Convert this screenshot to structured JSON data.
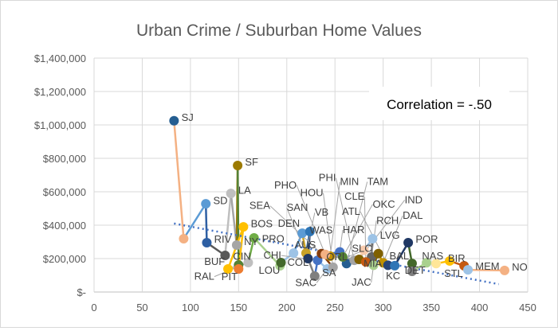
{
  "chart_data": {
    "type": "scatter",
    "title": "Urban Crime / Suburban Home Values",
    "annotation": "Correlation = -.50",
    "xlim": [
      0,
      450
    ],
    "ylim": [
      0,
      1400000
    ],
    "x_ticks": [
      "0",
      "50",
      "100",
      "150",
      "200",
      "250",
      "300",
      "350",
      "400",
      "450"
    ],
    "y_ticks": [
      "$-",
      "$200,000",
      "$400,000",
      "$600,000",
      "$800,000",
      "$1,000,000",
      "$1,200,000",
      "$1,400,000"
    ],
    "grid": true,
    "connected_points": true,
    "trendline": {
      "style": "dotted",
      "color": "#4472c4",
      "x": [
        83,
        420
      ],
      "y": [
        410000,
        47000
      ]
    },
    "points": [
      {
        "label": "SJ",
        "x": 83,
        "y": 1025000,
        "color": "#255e91"
      },
      {
        "label": "",
        "x": 93,
        "y": 319000,
        "color": "#f4b183"
      },
      {
        "label": "SD",
        "x": 116,
        "y": 528000,
        "color": "#5b9bd5"
      },
      {
        "label": "RIV",
        "x": 117,
        "y": 295000,
        "color": "#2e5fa3"
      },
      {
        "label": "CIN",
        "x": 136,
        "y": 219000,
        "color": "#595959"
      },
      {
        "label": "LA",
        "x": 142,
        "y": 590000,
        "color": "#bfbfbf"
      },
      {
        "label": "NY",
        "x": 148,
        "y": 281000,
        "color": "#a5a5a5"
      },
      {
        "label": "SF",
        "x": 149,
        "y": 757000,
        "color": "#9c7a00"
      },
      {
        "label": "",
        "x": 150,
        "y": 162000,
        "color": "#548235"
      },
      {
        "label": "PIT",
        "x": 150,
        "y": 138000,
        "color": "#ed7d31"
      },
      {
        "label": "BOS",
        "x": 155,
        "y": 390000,
        "color": "#ffc000"
      },
      {
        "label": "BUF",
        "x": 139,
        "y": 138000,
        "color": "#ffc000"
      },
      {
        "label": "RAL",
        "x": 160,
        "y": 176000,
        "color": "#bfbfbf"
      },
      {
        "label": "PRO",
        "x": 166,
        "y": 324000,
        "color": "#70ad47"
      },
      {
        "label": "COL",
        "x": 193,
        "y": 157000,
        "color": "#a9d18e"
      },
      {
        "label": "LOU",
        "x": 194,
        "y": 176000,
        "color": "#43682b"
      },
      {
        "label": "AUS",
        "x": 207,
        "y": 233000,
        "color": "#9dc3e6"
      },
      {
        "label": "WAS",
        "x": 216,
        "y": 352000,
        "color": "#5b9bd5"
      },
      {
        "label": "VB",
        "x": 220,
        "y": 233000,
        "color": "#c9a227"
      },
      {
        "label": "DEN",
        "x": 224,
        "y": 362000,
        "color": "#2e75b6"
      },
      {
        "label": "SAN",
        "x": 222,
        "y": 200000,
        "color": "#203864"
      },
      {
        "label": "SA",
        "x": 229,
        "y": 95000,
        "color": "#7f7f7f"
      },
      {
        "label": "CHI",
        "x": 232,
        "y": 190000,
        "color": "#4472c4"
      },
      {
        "label": "SAC",
        "x": 242,
        "y": 138000,
        "color": "#9dc3e6"
      },
      {
        "label": "HOU",
        "x": 248,
        "y": 148000,
        "color": "#a5a5a5"
      },
      {
        "label": "SEA",
        "x": 236,
        "y": 230000,
        "color": "#843c0c"
      },
      {
        "label": "MIN",
        "x": 245,
        "y": 215000,
        "color": "#bf9000"
      },
      {
        "label": "PHO",
        "x": 240,
        "y": 225000,
        "color": "#f4b183"
      },
      {
        "label": "HAR",
        "x": 255,
        "y": 240000,
        "color": "#4472c4"
      },
      {
        "label": "TAM",
        "x": 262,
        "y": 170000,
        "color": "#255e91"
      },
      {
        "label": "OKC",
        "x": 258,
        "y": 210000,
        "color": "#548235"
      },
      {
        "label": "PHI",
        "x": 270,
        "y": 190000,
        "color": "#a5a5a5"
      },
      {
        "label": "IND",
        "x": 275,
        "y": 195000,
        "color": "#806000"
      },
      {
        "label": "ORL",
        "x": 280,
        "y": 250000,
        "color": "#f8cbad"
      },
      {
        "label": "LVG",
        "x": 289,
        "y": 319000,
        "color": "#9dc3e6"
      },
      {
        "label": "RCH",
        "x": 288,
        "y": 210000,
        "color": "#636363"
      },
      {
        "label": "CLE",
        "x": 282,
        "y": 180000,
        "color": "#c55a11"
      },
      {
        "label": "JAC",
        "x": 290,
        "y": 160000,
        "color": "#a9d18e"
      },
      {
        "label": "SLC",
        "x": 295,
        "y": 230000,
        "color": "#7f6000"
      },
      {
        "label": "DAL",
        "x": 300,
        "y": 175000,
        "color": "#bf9000"
      },
      {
        "label": "ATL",
        "x": 305,
        "y": 160000,
        "color": "#264478"
      },
      {
        "label": "MIA",
        "x": 312,
        "y": 158000,
        "color": "#2e75b6"
      },
      {
        "label": "POR",
        "x": 326,
        "y": 295000,
        "color": "#203864"
      },
      {
        "label": "BAL",
        "x": 330,
        "y": 171000,
        "color": "#43682b"
      },
      {
        "label": "KC",
        "x": 330,
        "y": 124000,
        "color": "#7f7f7f"
      },
      {
        "label": "DET",
        "x": 345,
        "y": 175000,
        "color": "#a9d18e"
      },
      {
        "label": "BIR",
        "x": 355,
        "y": 170000,
        "color": "#ffe699"
      },
      {
        "label": "NAS",
        "x": 369,
        "y": 186000,
        "color": "#ffc000"
      },
      {
        "label": "STL",
        "x": 384,
        "y": 157000,
        "color": "#c55a11"
      },
      {
        "label": "MEM",
        "x": 388,
        "y": 133000,
        "color": "#9dc3e6"
      },
      {
        "label": "NO",
        "x": 426,
        "y": 129000,
        "color": "#f4b183"
      }
    ]
  }
}
